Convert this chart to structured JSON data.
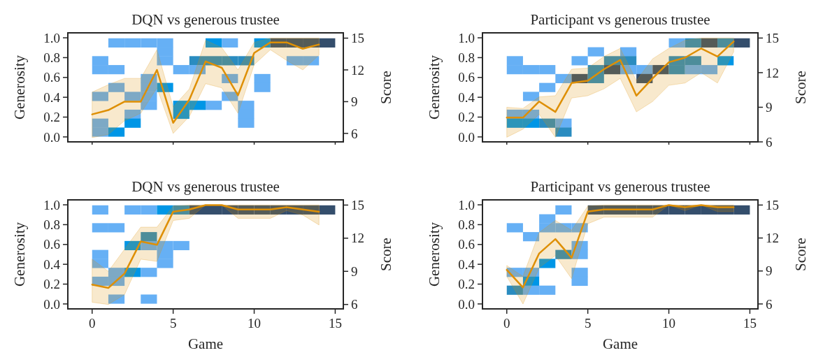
{
  "chart_data": [
    {
      "type": "line",
      "title": "DQN vs generous trustee",
      "ylabel": "Generosity",
      "y2label": "Score",
      "xlim": [
        -1.5,
        15.5
      ],
      "xticks": [
        0,
        5,
        10,
        15
      ],
      "ylim": [
        -0.05,
        1.05
      ],
      "yticks": [
        {
          "value": 0,
          "label": "0.0"
        },
        {
          "value": 0.2,
          "label": "0.2"
        },
        {
          "value": 0.4,
          "label": "0.4"
        },
        {
          "value": 0.6,
          "label": "0.6"
        },
        {
          "value": 0.8,
          "label": "0.8"
        },
        {
          "value": 1,
          "label": "1.0"
        }
      ],
      "y2lim": [
        5.2,
        15.5
      ],
      "y2ticks": [
        6,
        9,
        12,
        15
      ],
      "tick_labels": "y",
      "series": [
        {
          "type": "scatter",
          "marker": "square",
          "x": [
            0.5,
            0.5,
            0.5,
            0.5,
            0.5,
            1.5,
            1.5,
            1.5,
            1.5,
            2.5,
            2.5,
            2.5,
            2.5,
            3.5,
            3.5,
            3.5,
            3.5,
            3.5,
            4.5,
            4.5,
            4.5,
            4.5,
            5.5,
            5.5,
            5.5,
            6.5,
            6.5,
            6.5,
            7.5,
            7.5,
            7.5,
            8.5,
            8.5,
            8.5,
            8.5,
            9.5,
            9.5,
            9.5,
            9.5,
            10.5,
            10.5,
            10.5,
            11.5,
            12.5,
            12.5,
            13.5,
            13.5,
            14.5
          ],
          "values": [
            0.77,
            0.68,
            0.41,
            0.14,
            0.05,
            0.95,
            0.68,
            0.5,
            0.05,
            0.95,
            0.41,
            0.23,
            0.14,
            0.95,
            0.59,
            0.5,
            0.41,
            0.32,
            0.95,
            0.86,
            0.77,
            0.5,
            0.68,
            0.32,
            0.23,
            0.77,
            0.68,
            0.32,
            0.95,
            0.77,
            0.32,
            0.95,
            0.77,
            0.59,
            0.41,
            0.77,
            0.32,
            0.23,
            0.14,
            0.95,
            0.59,
            0.5,
            0.95,
            0.95,
            0.77,
            0.95,
            0.77,
            0.95
          ],
          "colors": [
            "#66b0f5",
            "#66b0f5",
            "#66b0f5",
            "#66b0f5",
            "#66b0f5",
            "#66b0f5",
            "#66b0f5",
            "#66b0f5",
            "#0096e6",
            "#66b0f5",
            "#66b0f5",
            "#66b0f5",
            "#0096e6",
            "#66b0f5",
            "#66b0f5",
            "#66b0f5",
            "#66b0f5",
            "#66b0f5",
            "#66b0f5",
            "#66b0f5",
            "#66b0f5",
            "#0096e6",
            "#66b0f5",
            "#0096e6",
            "#0096e6",
            "#2a8cc0",
            "#66b0f5",
            "#0096e6",
            "#0096e6",
            "#2a8cc0",
            "#66b0f5",
            "#66b0f5",
            "#2a8cc0",
            "#66b0f5",
            "#66b0f5",
            "#2a8cc0",
            "#66b0f5",
            "#66b0f5",
            "#66b0f5",
            "#0096e6",
            "#66b0f5",
            "#66b0f5",
            "#344e6c",
            "#344e6c",
            "#66b0f5",
            "#344e6c",
            "#66b0f5",
            "#344e6c"
          ]
        },
        {
          "axis": "y2",
          "color": "#de8f05",
          "x": [
            0,
            1,
            2,
            3,
            4,
            5,
            6,
            7,
            8,
            9,
            10,
            11,
            12,
            13,
            14
          ],
          "values": [
            7.8,
            8.2,
            9.0,
            9.0,
            12.0,
            7.0,
            9.2,
            12.8,
            12.2,
            9.6,
            13.6,
            14.6,
            14.6,
            14.0,
            14.4
          ],
          "lower": [
            5.6,
            5.9,
            7.2,
            7.9,
            10.3,
            6.0,
            7.6,
            10.7,
            10.3,
            7.9,
            12.5,
            13.9,
            12.9,
            12.0,
            13.4
          ],
          "upper": [
            9.9,
            10.6,
            11.2,
            11.2,
            13.9,
            8.5,
            10.2,
            14.8,
            14.1,
            12.0,
            14.6,
            15.0,
            15.0,
            15.0,
            15.0
          ]
        }
      ]
    },
    {
      "type": "line",
      "title": "Participant vs generous trustee",
      "ylabel": "Generosity",
      "y2label": "Score",
      "xlim": [
        -1.5,
        15.5
      ],
      "xticks": [
        0,
        5,
        10,
        15
      ],
      "ylim": [
        -0.05,
        1.05
      ],
      "yticks": [
        {
          "value": 0,
          "label": "0.0"
        },
        {
          "value": 0.2,
          "label": "0.2"
        },
        {
          "value": 0.4,
          "label": "0.4"
        },
        {
          "value": 0.6,
          "label": "0.6"
        },
        {
          "value": 0.8,
          "label": "0.8"
        },
        {
          "value": 1,
          "label": "1.0"
        }
      ],
      "y2lim": [
        6,
        15.45
      ],
      "y2ticks": [
        6,
        9,
        12,
        15
      ],
      "tick_labels": "y",
      "series": [
        {
          "type": "scatter",
          "marker": "square",
          "x": [
            0.5,
            0.5,
            0.5,
            0.5,
            1.5,
            1.5,
            1.5,
            1.5,
            2.5,
            2.5,
            2.5,
            3.5,
            3.5,
            3.5,
            4.5,
            4.5,
            5.5,
            5.5,
            5.5,
            6.5,
            6.5,
            7.5,
            7.5,
            7.5,
            8.5,
            8.5,
            9.5,
            10.5,
            10.5,
            10.5,
            11.5,
            11.5,
            11.5,
            12.5,
            12.5,
            13.5,
            13.5,
            14.5
          ],
          "values": [
            0.77,
            0.68,
            0.23,
            0.14,
            0.68,
            0.41,
            0.23,
            0.14,
            0.68,
            0.5,
            0.14,
            0.59,
            0.14,
            0.05,
            0.77,
            0.59,
            0.86,
            0.68,
            0.59,
            0.77,
            0.68,
            0.86,
            0.77,
            0.68,
            0.68,
            0.59,
            0.68,
            0.95,
            0.77,
            0.68,
            0.95,
            0.77,
            0.68,
            0.95,
            0.68,
            0.95,
            0.77,
            0.95
          ],
          "colors": [
            "#66b0f5",
            "#66b0f5",
            "#66b0f5",
            "#0096e6",
            "#66b0f5",
            "#66b0f5",
            "#66b0f5",
            "#0096e6",
            "#66b0f5",
            "#66b0f5",
            "#2a8cc0",
            "#66b0f5",
            "#66b0f5",
            "#2a8cc0",
            "#66b0f5",
            "#344e6c",
            "#66b0f5",
            "#2a8cc0",
            "#2a8cc0",
            "#2a8cc0",
            "#344e6c",
            "#66b0f5",
            "#2a8cc0",
            "#66b0f5",
            "#66b0f5",
            "#344e6c",
            "#344e6c",
            "#66b0f5",
            "#2a8cc0",
            "#2a8cc0",
            "#2a8cc0",
            "#2a8cc0",
            "#66b0f5",
            "#344e6c",
            "#66b0f5",
            "#2a8cc0",
            "#0096e6",
            "#344e6c"
          ]
        },
        {
          "axis": "y2",
          "color": "#de8f05",
          "x": [
            0,
            1,
            2,
            3,
            4,
            5,
            6,
            7,
            8,
            9,
            10,
            11,
            12,
            13,
            14
          ],
          "values": [
            8.1,
            8.1,
            9.5,
            8.6,
            11.1,
            11.3,
            12.3,
            13.1,
            10.0,
            11.5,
            12.9,
            13.3,
            14.1,
            13.4,
            14.7
          ],
          "lower": [
            6.4,
            7.1,
            8.4,
            6.4,
            9.8,
            10.0,
            10.6,
            11.5,
            8.6,
            9.5,
            10.9,
            11.1,
            12.0,
            11.1,
            13.8
          ],
          "upper": [
            9.0,
            8.9,
            9.9,
            10.0,
            12.3,
            12.4,
            13.4,
            14.1,
            11.3,
            13.2,
            14.1,
            14.8,
            15.0,
            15.0,
            15.0
          ]
        }
      ]
    },
    {
      "type": "line",
      "title": "DQN vs generous trustee",
      "xlabel": "Game",
      "ylabel": "Generosity",
      "y2label": "Score",
      "xlim": [
        -1.5,
        15.5
      ],
      "xticks": [
        0,
        5,
        10,
        15
      ],
      "ylim": [
        -0.05,
        1.05
      ],
      "yticks": [
        {
          "value": 0,
          "label": "0.0"
        },
        {
          "value": 0.2,
          "label": "0.2"
        },
        {
          "value": 0.4,
          "label": "0.4"
        },
        {
          "value": 0.6,
          "label": "0.6"
        },
        {
          "value": 0.8,
          "label": "0.8"
        },
        {
          "value": 1,
          "label": "1.0"
        }
      ],
      "y2lim": [
        5.6,
        15.47
      ],
      "y2ticks": [
        6,
        9,
        12,
        15
      ],
      "series": [
        {
          "type": "scatter",
          "marker": "square",
          "x": [
            0.5,
            0.5,
            0.5,
            0.5,
            0.5,
            1.5,
            1.5,
            1.5,
            1.5,
            2.5,
            2.5,
            2.5,
            3.5,
            3.5,
            3.5,
            3.5,
            3.5,
            4.5,
            4.5,
            4.5,
            4.5,
            5.5,
            5.5,
            6.5,
            7.5,
            8.5,
            9.5,
            10.5,
            11.5,
            12.5,
            13.5,
            14.5
          ],
          "values": [
            0.95,
            0.77,
            0.5,
            0.41,
            0.23,
            0.77,
            0.32,
            0.23,
            0.05,
            0.95,
            0.59,
            0.32,
            0.95,
            0.68,
            0.59,
            0.32,
            0.05,
            0.95,
            0.59,
            0.5,
            0.41,
            0.95,
            0.59,
            0.95,
            0.95,
            0.95,
            0.95,
            0.95,
            0.95,
            0.95,
            0.95,
            0.95
          ],
          "colors": [
            "#66b0f5",
            "#66b0f5",
            "#66b0f5",
            "#66b0f5",
            "#66b0f5",
            "#66b0f5",
            "#66b0f5",
            "#66b0f5",
            "#66b0f5",
            "#66b0f5",
            "#0096e6",
            "#0096e6",
            "#66b0f5",
            "#2a8cc0",
            "#66b0f5",
            "#66b0f5",
            "#66b0f5",
            "#0096e6",
            "#66b0f5",
            "#66b0f5",
            "#66b0f5",
            "#2a8cc0",
            "#66b0f5",
            "#344e6c",
            "#344e6c",
            "#344e6c",
            "#344e6c",
            "#344e6c",
            "#344e6c",
            "#344e6c",
            "#344e6c",
            "#344e6c"
          ]
        },
        {
          "axis": "y2",
          "color": "#de8f05",
          "x": [
            0,
            1,
            2,
            3,
            4,
            5,
            6,
            7,
            8,
            9,
            10,
            11,
            12,
            13,
            14
          ],
          "values": [
            7.8,
            7.5,
            8.8,
            11.7,
            11.4,
            14.4,
            14.6,
            15.0,
            15.0,
            14.6,
            14.6,
            14.6,
            14.8,
            14.6,
            14.4
          ],
          "lower": [
            6.2,
            6.0,
            6.9,
            10.1,
            9.9,
            13.6,
            13.8,
            15.0,
            15.0,
            13.8,
            13.8,
            13.8,
            14.5,
            14.1,
            13.2
          ],
          "upper": [
            10.1,
            9.0,
            11.0,
            13.0,
            13.0,
            14.9,
            15.0,
            15.0,
            15.0,
            15.0,
            15.0,
            15.0,
            15.0,
            15.0,
            15.0
          ]
        }
      ]
    },
    {
      "type": "line",
      "title": "Participant vs generous trustee",
      "xlabel": "Game",
      "ylabel": "Generosity",
      "y2label": "Score",
      "xlim": [
        -1.5,
        15.5
      ],
      "xticks": [
        0,
        5,
        10,
        15
      ],
      "ylim": [
        -0.05,
        1.05
      ],
      "yticks": [
        {
          "value": 0,
          "label": "0.0"
        },
        {
          "value": 0.2,
          "label": "0.2"
        },
        {
          "value": 0.4,
          "label": "0.4"
        },
        {
          "value": 0.6,
          "label": "0.6"
        },
        {
          "value": 0.8,
          "label": "0.8"
        },
        {
          "value": 1,
          "label": "1.0"
        }
      ],
      "y2lim": [
        5.55,
        15.47
      ],
      "y2ticks": [
        6,
        9,
        12,
        15
      ],
      "series": [
        {
          "type": "scatter",
          "marker": "square",
          "x": [
            0.5,
            0.5,
            0.5,
            1.5,
            1.5,
            1.5,
            1.5,
            2.5,
            2.5,
            2.5,
            2.5,
            3.5,
            3.5,
            3.5,
            4.5,
            4.5,
            4.5,
            4.5,
            4.5,
            5.5,
            6.5,
            7.5,
            8.5,
            9.5,
            10.5,
            11.5,
            12.5,
            13.5,
            14.5
          ],
          "values": [
            0.77,
            0.32,
            0.14,
            0.68,
            0.32,
            0.23,
            0.14,
            0.86,
            0.77,
            0.41,
            0.14,
            0.95,
            0.77,
            0.5,
            0.77,
            0.59,
            0.5,
            0.32,
            0.23,
            0.95,
            0.95,
            0.95,
            0.95,
            0.95,
            0.95,
            0.95,
            0.95,
            0.95,
            0.95
          ],
          "colors": [
            "#66b0f5",
            "#66b0f5",
            "#2a8cc0",
            "#66b0f5",
            "#66b0f5",
            "#0096e6",
            "#66b0f5",
            "#66b0f5",
            "#66b0f5",
            "#0096e6",
            "#66b0f5",
            "#66b0f5",
            "#66b0f5",
            "#2a8cc0",
            "#66b0f5",
            "#66b0f5",
            "#66b0f5",
            "#66b0f5",
            "#66b0f5",
            "#344e6c",
            "#344e6c",
            "#344e6c",
            "#344e6c",
            "#344e6c",
            "#344e6c",
            "#344e6c",
            "#344e6c",
            "#344e6c",
            "#344e6c"
          ]
        },
        {
          "axis": "y2",
          "color": "#de8f05",
          "x": [
            0,
            1,
            2,
            3,
            4,
            5,
            6,
            7,
            8,
            9,
            10,
            11,
            12,
            13,
            14
          ],
          "values": [
            9.1,
            7.5,
            10.6,
            11.9,
            10.2,
            14.4,
            14.6,
            14.6,
            14.6,
            14.6,
            15.0,
            14.8,
            15.0,
            14.8,
            14.8
          ],
          "lower": [
            8.5,
            6.0,
            9.3,
            10.4,
            8.3,
            13.3,
            13.9,
            13.9,
            13.9,
            13.9,
            15.0,
            14.5,
            15.0,
            14.4,
            14.4
          ],
          "upper": [
            9.5,
            8.5,
            12.5,
            13.6,
            12.7,
            14.9,
            15.0,
            15.0,
            15.0,
            15.0,
            15.0,
            15.0,
            15.0,
            15.0,
            15.0
          ]
        }
      ]
    }
  ]
}
